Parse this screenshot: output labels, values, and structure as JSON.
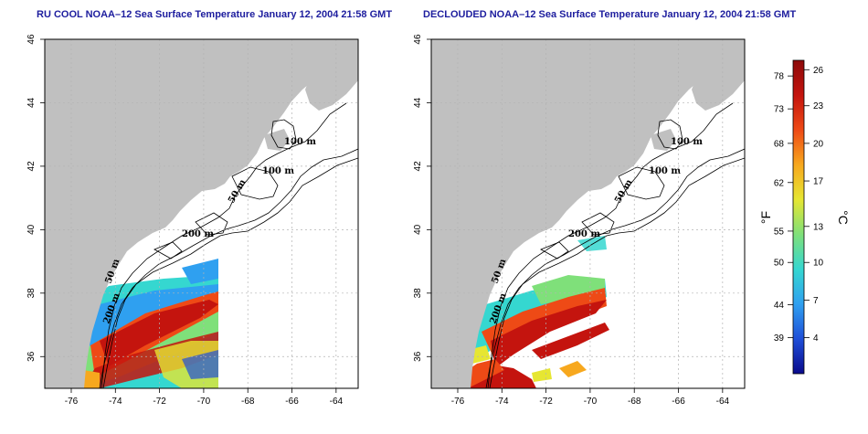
{
  "panels": [
    {
      "title": "RU COOL NOAA–12 Sea Surface Temperature January 12, 2004 21:58 GMT",
      "kind": "raw"
    },
    {
      "title": "DECLOUDED NOAA–12 Sea Surface Temperature January 12, 2004 21:58 GMT",
      "kind": "declouded"
    }
  ],
  "axes": {
    "x_ticks": [
      "-76",
      "-74",
      "-72",
      "-70",
      "-68",
      "-66",
      "-64"
    ],
    "y_ticks": [
      "36",
      "38",
      "40",
      "42",
      "44",
      "46"
    ],
    "lon_range": [
      -77.2,
      -63.0
    ],
    "lat_range": [
      35.0,
      46.0
    ]
  },
  "contour_labels": {
    "c100a": "100 m",
    "c100b": "100 m",
    "c50a": "50 m",
    "c200": "200 m",
    "c50b": "50 m",
    "c200b": "200 m"
  },
  "colorbar": {
    "fahrenheit_label": "°F",
    "celsius_label": "°C",
    "fahrenheit_ticks": [
      "78",
      "73",
      "68",
      "62",
      "55",
      "50",
      "44",
      "39"
    ],
    "celsius_ticks": [
      "26",
      "23",
      "20",
      "17",
      "13",
      "10",
      "7",
      "4"
    ],
    "colors": [
      "#0a0a8c",
      "#1f4fd8",
      "#2fa0f0",
      "#35d7d0",
      "#7fe07a",
      "#e6e632",
      "#f7a81e",
      "#ee4a16",
      "#c4140e",
      "#8c0a0a"
    ]
  },
  "colors": {
    "land": "#c0c0c0",
    "title": "#1d1d9e",
    "grid": "#b3b3b3"
  }
}
